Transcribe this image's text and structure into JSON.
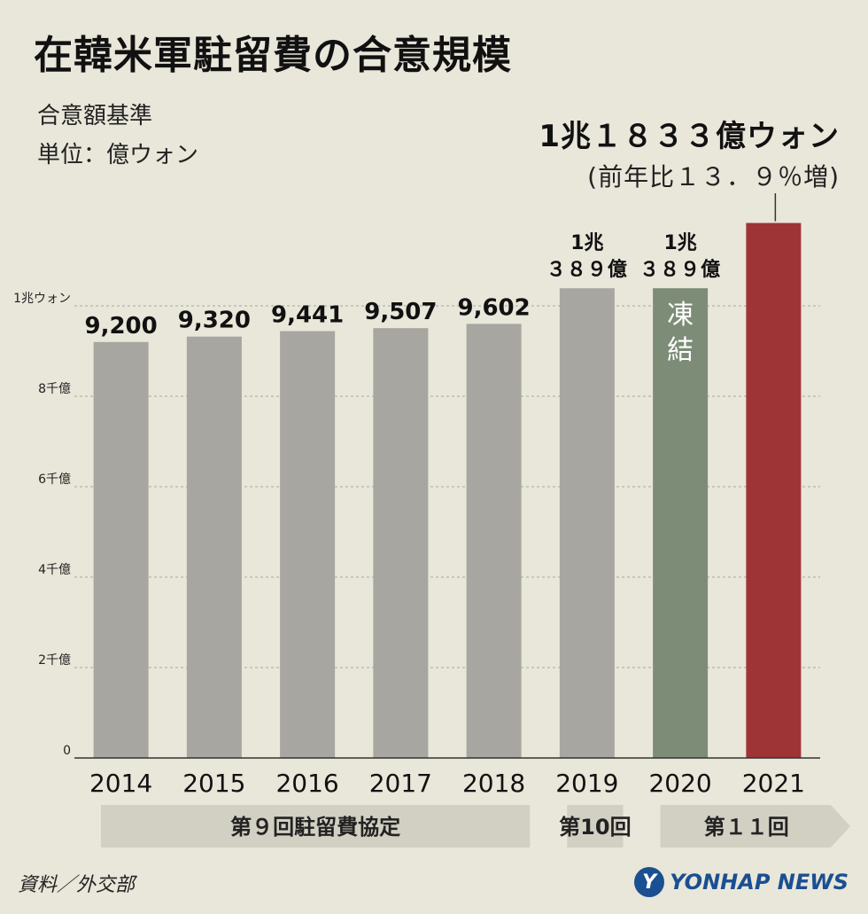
{
  "title": "在韓米軍駐留費の合意規模",
  "subtitle_lines": [
    "合意額基準",
    "単位：億ウォン"
  ],
  "highlight": {
    "main": "1兆１８３３億ウォン",
    "sub": "(前年比１３．９％増)"
  },
  "source": "資料／外交部",
  "logo_text": "YONHAP NEWS",
  "colors": {
    "bar_default": "#a7a6a0",
    "bar_frozen": "#7d8c77",
    "bar_highlight": "#9e3436",
    "phase_band": "#d2cfc3",
    "background": "#e9e6da"
  },
  "chart_data": {
    "type": "bar",
    "categories": [
      "2014",
      "2015",
      "2016",
      "2017",
      "2018",
      "2019",
      "2020",
      "2021"
    ],
    "values": [
      9200,
      9320,
      9441,
      9507,
      9602,
      10389,
      10389,
      11833
    ],
    "value_labels": [
      [
        "9,200"
      ],
      [
        "9,320"
      ],
      [
        "9,441"
      ],
      [
        "9,507"
      ],
      [
        "9,602"
      ],
      [
        "1兆",
        "３８９億"
      ],
      [
        "1兆",
        "３８９億"
      ],
      []
    ],
    "bar_inner_labels": [
      "",
      "",
      "",
      "",
      "",
      "",
      "凍\n結",
      ""
    ],
    "bar_styles": [
      "default",
      "default",
      "default",
      "default",
      "default",
      "default",
      "frozen",
      "highlight"
    ],
    "ylim": [
      0,
      12000
    ],
    "yticks": [
      0,
      2000,
      4000,
      6000,
      8000,
      10000
    ],
    "ytick_labels": [
      "0",
      "2千億",
      "4千億",
      "6千億",
      "8千億",
      "1兆ウォン"
    ],
    "phases": [
      {
        "label": "第９回駐留費協定",
        "start": 0,
        "end": 4
      },
      {
        "label": "第10回",
        "start": 5,
        "end": 5
      },
      {
        "label": "第１１回",
        "start": 6,
        "end": 7
      }
    ]
  }
}
